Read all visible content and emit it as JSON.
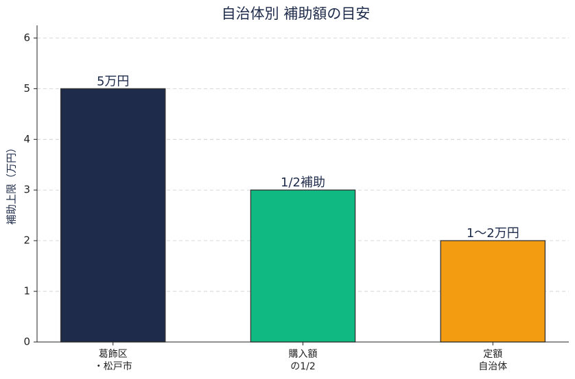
{
  "chart_data": {
    "type": "bar",
    "title": "自治体別 補助額の目安",
    "ylabel": "補助上限（万円）",
    "categories": [
      [
        "葛飾区",
        "・松戸市"
      ],
      [
        "購入額",
        "の1/2"
      ],
      [
        "定額",
        "自治体"
      ]
    ],
    "values": [
      5,
      3,
      2
    ],
    "annotations": [
      "5万円",
      "1/2補助",
      "1〜2万円"
    ],
    "colors": [
      "#1e2b4a",
      "#10b981",
      "#f39c12"
    ],
    "ylim": [
      0,
      6.25
    ],
    "yticks": [
      0,
      1,
      2,
      3,
      4,
      5,
      6
    ],
    "grid": true
  }
}
